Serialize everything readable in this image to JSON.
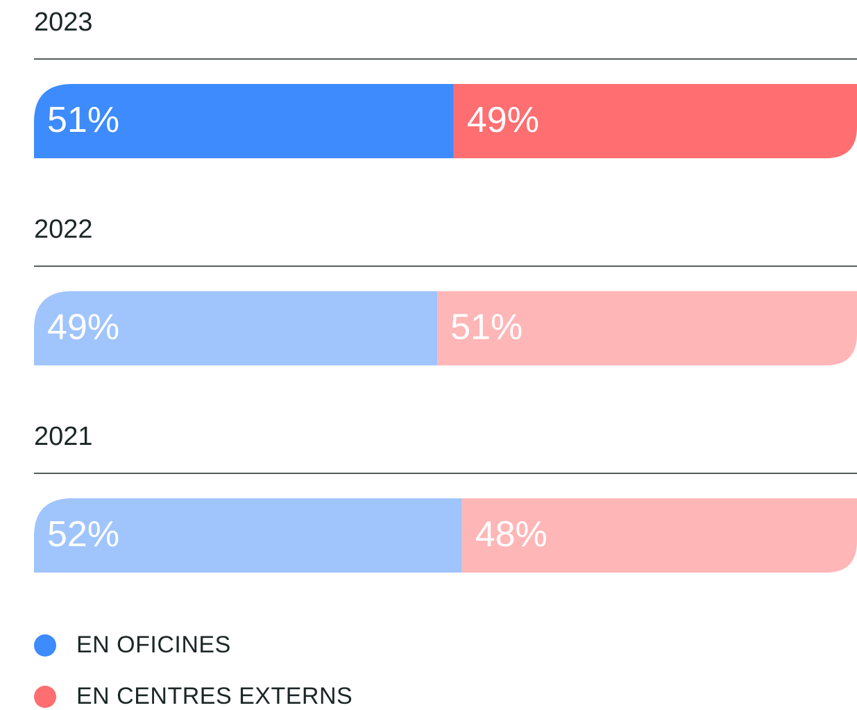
{
  "chart_data": {
    "type": "stacked-bar",
    "categories": [
      "2023",
      "2022",
      "2021"
    ],
    "series": [
      {
        "name": "EN OFICINES",
        "color": "#3d8bfd",
        "colors": [
          "#3d8bfd",
          "#a0c4fc",
          "#a0c4fc"
        ],
        "values": [
          51,
          49,
          52
        ],
        "value_labels": [
          "51%",
          "49%",
          "52%"
        ]
      },
      {
        "name": "EN CENTRES EXTERNS",
        "color": "#ff6e70",
        "colors": [
          "#ff6e70",
          "#ffb6b7",
          "#ffb6b7"
        ],
        "values": [
          49,
          51,
          48
        ],
        "value_labels": [
          "49%",
          "51%",
          "48%"
        ]
      }
    ]
  }
}
